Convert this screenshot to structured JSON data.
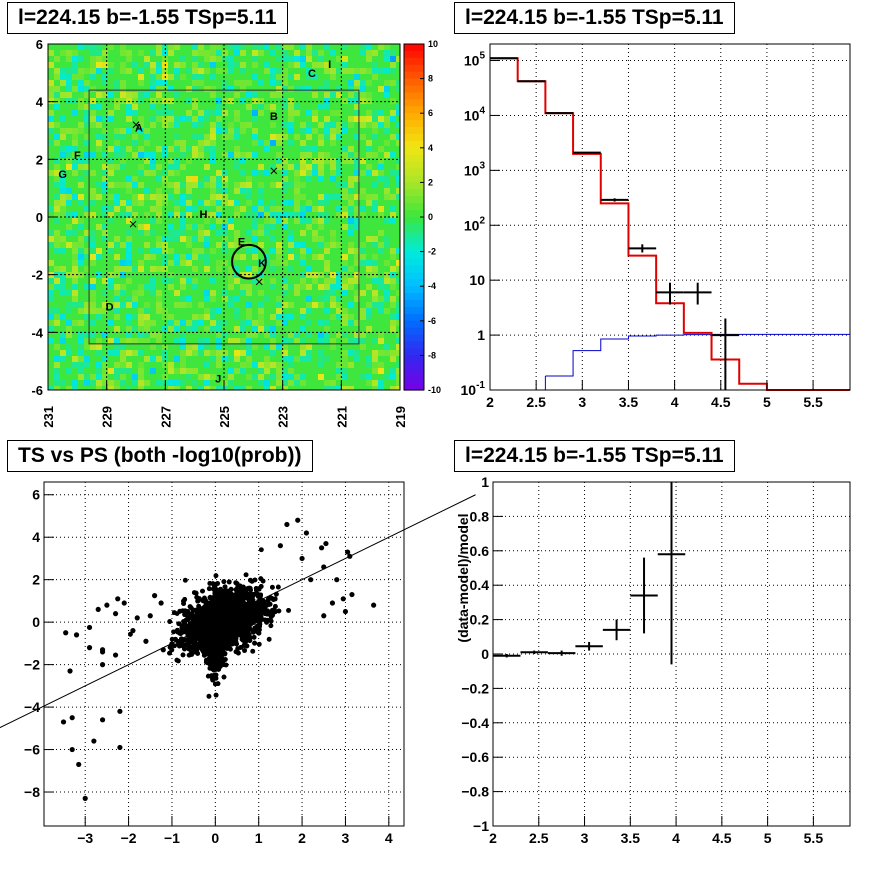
{
  "panels": {
    "map_title": "l=224.15 b=-1.55 TSp=5.11",
    "spectrum_title": "l=224.15 b=-1.55 TSp=5.11",
    "scatter_title": "TS vs PS (both -log10(prob))",
    "residual_title": "l=224.15 b=-1.55 TSp=5.11"
  },
  "colors": {
    "model_line": "#e00000",
    "background_line": "#0000cc",
    "data": "#000000",
    "map_base": "#3ee63e"
  },
  "chart_data": [
    {
      "type": "heatmap",
      "title": "l=224.15 b=-1.55 TSp=5.11",
      "x_ticks": [
        "231",
        "229",
        "227",
        "225",
        "223",
        "221",
        "219"
      ],
      "x_tick_values": [
        231,
        229,
        227,
        225,
        223,
        221,
        219
      ],
      "y_ticks": [
        "6",
        "4",
        "2",
        "0",
        "-2",
        "-4",
        "-6"
      ],
      "y_tick_values": [
        6,
        4,
        2,
        0,
        -2,
        -4,
        -6
      ],
      "xlim": [
        231,
        219
      ],
      "ylim": [
        -6,
        6
      ],
      "colorbar_ticks": [
        "10",
        "8",
        "6",
        "4",
        "2",
        "0",
        "-2",
        "-4",
        "-6",
        "-8",
        "-10"
      ],
      "colorbar_tick_values": [
        10,
        8,
        6,
        4,
        2,
        0,
        -2,
        -4,
        -6,
        -8,
        -10
      ],
      "colorbar_range": [
        -10,
        10
      ],
      "grid": true,
      "roi_box": {
        "l": [
          229.6,
          220.4
        ],
        "b": [
          -4.4,
          4.4
        ]
      },
      "source_labels": [
        {
          "label": "A",
          "l": 227.9,
          "b": 3.1
        },
        {
          "label": "B",
          "l": 223.3,
          "b": 3.5
        },
        {
          "label": "C",
          "l": 222.0,
          "b": 5.0
        },
        {
          "label": "D",
          "l": 228.9,
          "b": -3.1
        },
        {
          "label": "E",
          "l": 224.4,
          "b": -0.85
        },
        {
          "label": "F",
          "l": 230.0,
          "b": 2.15
        },
        {
          "label": "G",
          "l": 230.5,
          "b": 1.5
        },
        {
          "label": "H",
          "l": 225.7,
          "b": 0.1
        },
        {
          "label": "I",
          "l": 221.4,
          "b": 5.3
        },
        {
          "label": "J",
          "l": 225.2,
          "b": -5.6
        },
        {
          "label": "K",
          "l": 223.7,
          "b": -1.6
        }
      ],
      "crosses": [
        {
          "l": 228.0,
          "b": 3.2
        },
        {
          "l": 223.3,
          "b": 1.6
        },
        {
          "l": 228.1,
          "b": -0.25
        },
        {
          "l": 223.8,
          "b": -2.25
        }
      ],
      "circle": {
        "l": 224.15,
        "b": -1.55,
        "radius_deg": 0.5
      }
    },
    {
      "type": "line",
      "title": "l=224.15 b=-1.55 TSp=5.11",
      "x_ticks": [
        "2",
        "2.5",
        "3",
        "3.5",
        "4",
        "4.5",
        "5",
        "5.5"
      ],
      "x_tick_values": [
        2,
        2.5,
        3,
        3.5,
        4,
        4.5,
        5,
        5.5
      ],
      "y_scale": "log",
      "y_ticks": [
        "10^5",
        "10^4",
        "10^3",
        "10^2",
        "10",
        "1",
        "10^-1"
      ],
      "y_tick_values": [
        100000,
        10000,
        1000,
        100,
        10,
        1,
        0.1
      ],
      "xlim": [
        2,
        5.9
      ],
      "ylim": [
        0.1,
        200000
      ],
      "grid": true,
      "series": [
        {
          "key": "model",
          "bin_edges": [
            2,
            2.3,
            2.6,
            2.9,
            3.2,
            3.5,
            3.8,
            4.1,
            4.4,
            4.7,
            5.0,
            5.9
          ],
          "values": [
            110000,
            42000,
            11000,
            2000,
            250,
            28,
            3.8,
            1.1,
            0.36,
            0.13,
            0.1
          ]
        },
        {
          "key": "background",
          "bin_edges": [
            2.6,
            2.9,
            3.2,
            3.5,
            3.8,
            4.1,
            4.4,
            4.7,
            5.0,
            5.9
          ],
          "values": [
            0.18,
            0.52,
            0.85,
            0.96,
            1.0,
            1.02,
            1.03,
            1.03,
            1.03
          ]
        },
        {
          "key": "data",
          "x": [
            2.15,
            2.45,
            2.75,
            3.05,
            3.35,
            3.65,
            3.95,
            4.25,
            4.55
          ],
          "xerr": 0.15,
          "y": [
            110000,
            42000,
            11000,
            2100,
            290,
            38,
            6,
            6,
            1.0
          ],
          "y_low": [
            109000,
            41500,
            10800,
            2050,
            270,
            32,
            3.6,
            3.6,
            0.1
          ],
          "y_high": [
            111000,
            42500,
            11200,
            2150,
            310,
            45,
            9,
            9,
            2.0
          ]
        }
      ]
    },
    {
      "type": "scatter",
      "title": "TS vs PS (both -log10(prob))",
      "x_ticks": [
        "−3",
        "−2",
        "−1",
        "0",
        "1",
        "2",
        "3",
        "4"
      ],
      "x_tick_values": [
        -3,
        -2,
        -1,
        0,
        1,
        2,
        3,
        4
      ],
      "y_ticks": [
        "6",
        "4",
        "2",
        "0",
        "−2",
        "−4",
        "−6",
        "−8"
      ],
      "y_tick_values": [
        6,
        4,
        2,
        0,
        -2,
        -4,
        -6,
        -8
      ],
      "xlim": [
        -3.95,
        4.35
      ],
      "ylim": [
        -9.6,
        6.6
      ],
      "grid": true,
      "reference_line": {
        "slope": 1.0,
        "intercept": 0.0
      },
      "outliers": [
        [
          -3.0,
          -8.3
        ],
        [
          -3.15,
          -6.7
        ],
        [
          -3.3,
          -6.0
        ],
        [
          -2.8,
          -5.6
        ],
        [
          -2.2,
          -5.9
        ],
        [
          -2.6,
          -4.6
        ],
        [
          -2.2,
          -4.2
        ],
        [
          -3.3,
          -4.5
        ],
        [
          -3.5,
          -4.7
        ],
        [
          -3.35,
          -2.3
        ],
        [
          -2.6,
          -2.0
        ],
        [
          -3.45,
          -0.5
        ],
        [
          -3.2,
          -0.6
        ],
        [
          -2.9,
          -1.2
        ],
        [
          -2.6,
          -1.4
        ],
        [
          -2.3,
          -1.55
        ],
        [
          -2.6,
          -1.3
        ],
        [
          -2.9,
          -0.25
        ],
        [
          -2.7,
          0.6
        ],
        [
          -2.5,
          0.8
        ],
        [
          -2.3,
          0.4
        ],
        [
          -2.25,
          1.1
        ],
        [
          -2.1,
          0.9
        ],
        [
          -1.4,
          1.25
        ],
        [
          -1.8,
          0.2
        ],
        [
          -1.5,
          0.3
        ],
        [
          -1.25,
          0.9
        ],
        [
          -1.9,
          -0.4
        ],
        [
          -1.6,
          -0.9
        ],
        [
          -1.2,
          -1.3
        ],
        [
          1.65,
          4.6
        ],
        [
          1.9,
          4.8
        ],
        [
          2.1,
          4.2
        ],
        [
          2.55,
          3.7
        ],
        [
          2.45,
          3.5
        ],
        [
          2.0,
          3.0
        ],
        [
          2.5,
          2.6
        ],
        [
          2.2,
          2.0
        ],
        [
          2.8,
          2.0
        ],
        [
          3.05,
          3.3
        ],
        [
          3.15,
          1.3
        ],
        [
          2.95,
          1.1
        ],
        [
          3.65,
          0.8
        ],
        [
          3.0,
          0.5
        ],
        [
          2.5,
          0.3
        ],
        [
          2.7,
          0.9
        ],
        [
          3.1,
          3.1
        ],
        [
          1.5,
          3.6
        ]
      ],
      "core_cloud": {
        "x_center": 0.2,
        "y_center": 0.3,
        "x_spread": 0.9,
        "y_spread": 1.2,
        "point_count": 4000
      }
    },
    {
      "type": "scatter",
      "title": "l=224.15 b=-1.55 TSp=5.11",
      "ylabel": "(data-model)/model",
      "x_ticks": [
        "2",
        "2.5",
        "3",
        "3.5",
        "4",
        "4.5",
        "5",
        "5.5"
      ],
      "x_tick_values": [
        2,
        2.5,
        3,
        3.5,
        4,
        4.5,
        5,
        5.5
      ],
      "y_ticks": [
        "1",
        "0.8",
        "0.6",
        "0.4",
        "0.2",
        "0",
        "−0.2",
        "−0.4",
        "−0.6",
        "−0.8",
        "−1"
      ],
      "y_tick_values": [
        1,
        0.8,
        0.6,
        0.4,
        0.2,
        0,
        -0.2,
        -0.4,
        -0.6,
        -0.8,
        -1
      ],
      "xlim": [
        2,
        5.9
      ],
      "ylim": [
        -1,
        1
      ],
      "grid": true,
      "x": [
        2.15,
        2.45,
        2.75,
        3.05,
        3.35,
        3.65,
        3.95
      ],
      "xerr": 0.15,
      "y": [
        -0.01,
        0.01,
        0.005,
        0.045,
        0.14,
        0.34,
        0.58
      ],
      "y_low": [
        -0.02,
        0.0,
        -0.01,
        0.02,
        0.08,
        0.12,
        -0.06
      ],
      "y_high": [
        0.0,
        0.02,
        0.02,
        0.07,
        0.2,
        0.56,
        1.0
      ]
    }
  ]
}
